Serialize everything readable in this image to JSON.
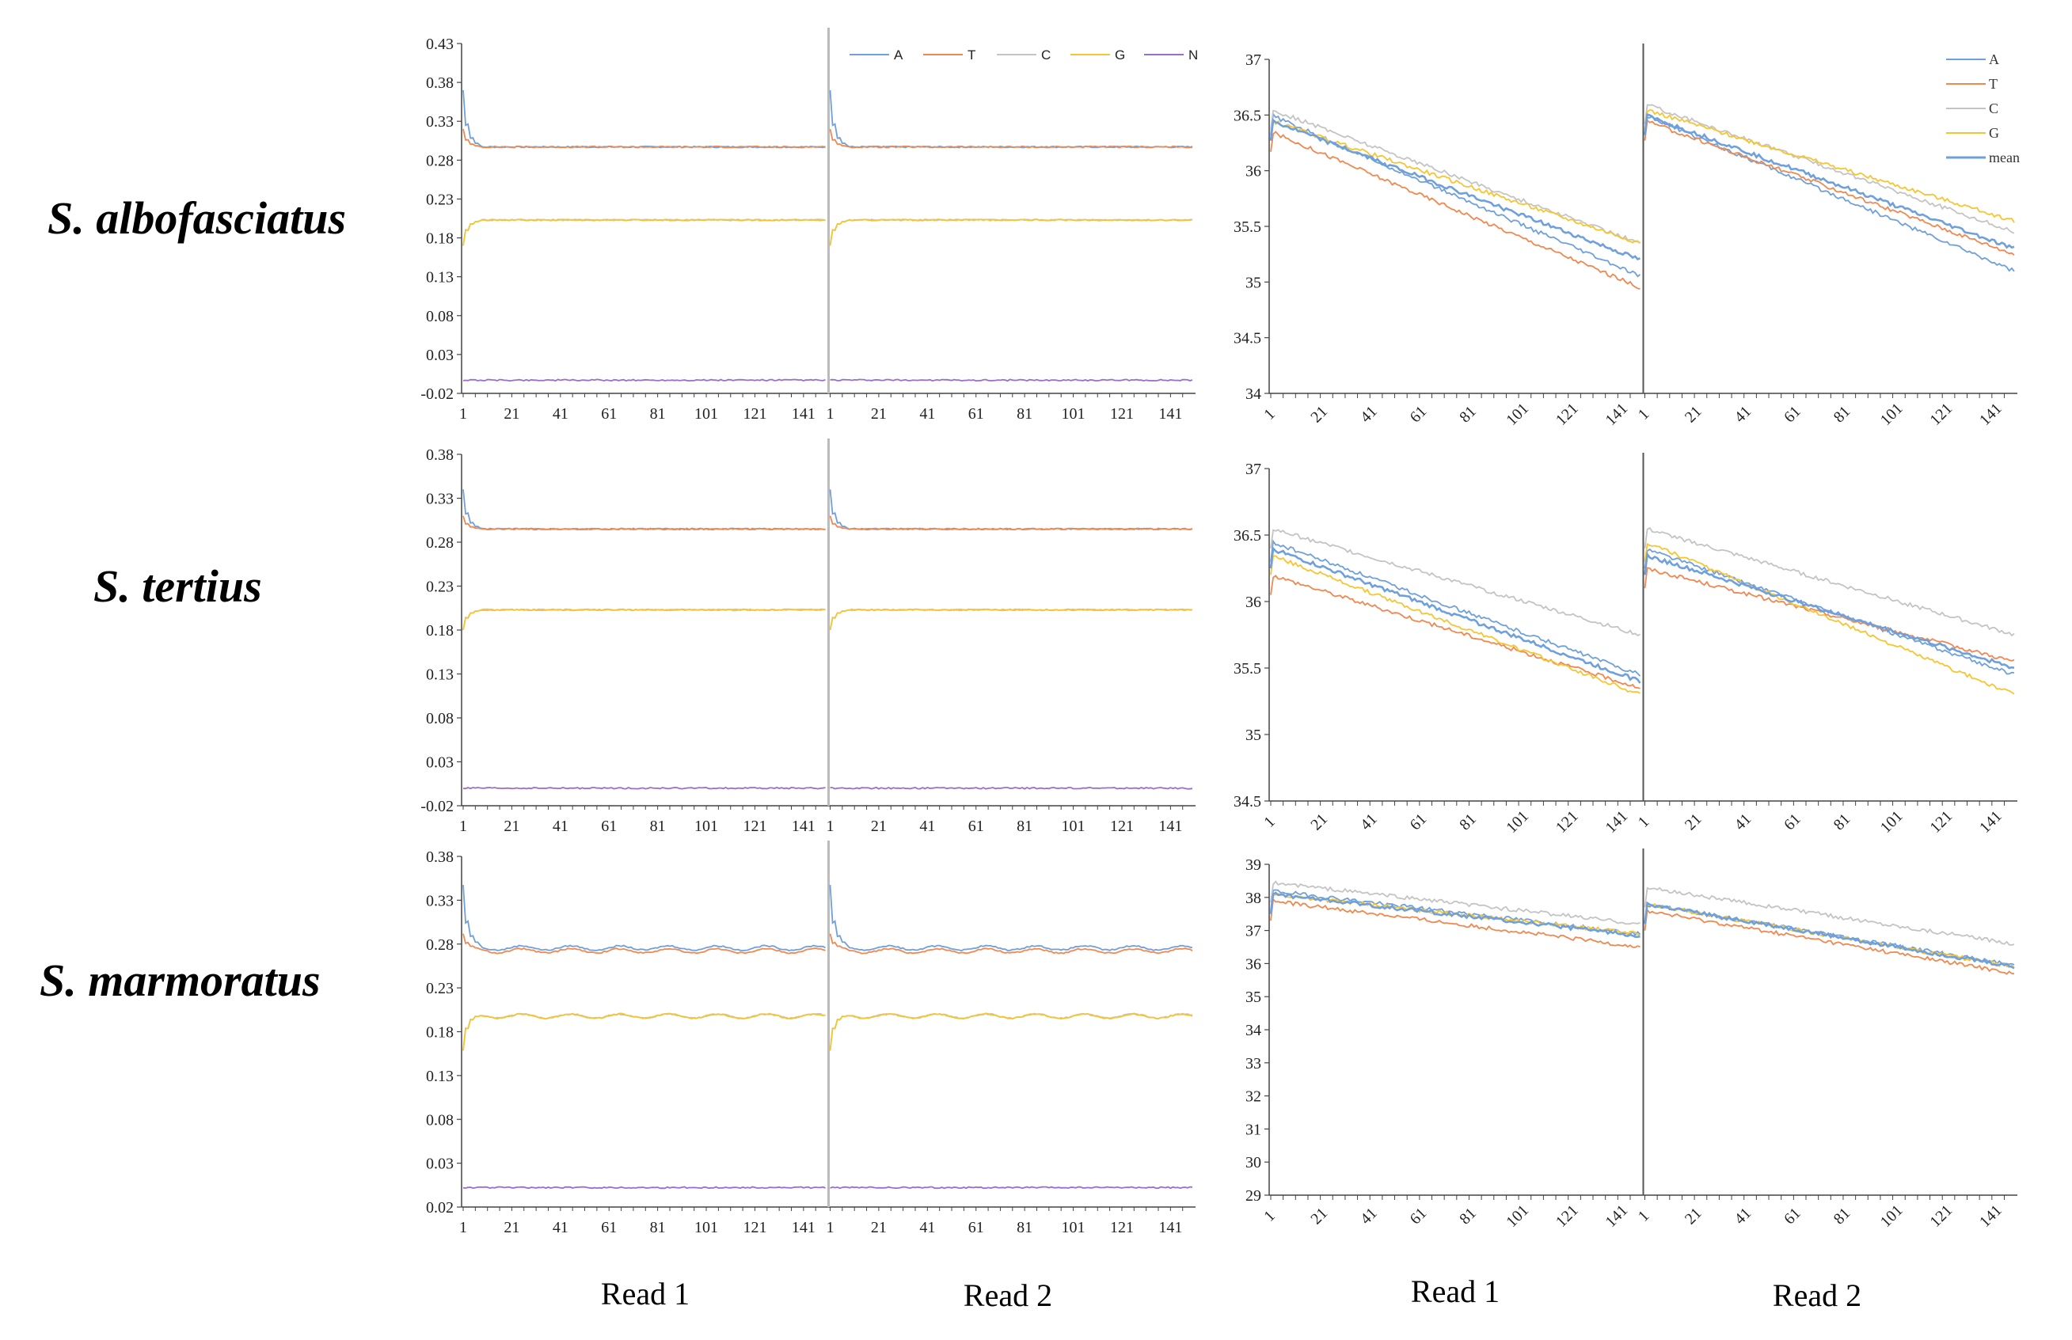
{
  "figure": {
    "species_labels": [
      "S. albofasciatus",
      "S. tertius",
      "S. marmoratus"
    ],
    "read_labels": [
      "Read 1",
      "Read 2",
      "Read 1",
      "Read 2"
    ]
  },
  "colors": {
    "A": "#6fa0dc",
    "T": "#f08850",
    "C": "#c4c4c4",
    "G": "#f7c530",
    "N": "#9a6fcb",
    "mean": "#6fa0dc",
    "divider": "#999999"
  },
  "chart_data": [
    {
      "type": "line",
      "row": 0,
      "panel": "base-composition",
      "title": "",
      "xlabel": "",
      "ylabel": "",
      "ylim": [
        -0.02,
        0.43
      ],
      "yticks": [
        "0.43",
        "0.38",
        "0.33",
        "0.28",
        "0.23",
        "0.18",
        "0.13",
        "0.08",
        "0.03",
        "-0.02"
      ],
      "xticks": [
        "1",
        "21",
        "41",
        "61",
        "81",
        "101",
        "121",
        "141"
      ],
      "reads": 2,
      "read_length": 150,
      "legend": {
        "entries": [
          "A",
          "T",
          "C",
          "G",
          "N"
        ],
        "placement": "top-right"
      },
      "series": [
        {
          "name": "A",
          "level": 0.297,
          "spike": 0.37
        },
        {
          "name": "T",
          "level": 0.297,
          "spike": 0.32
        },
        {
          "name": "C",
          "level": 0.203,
          "spike": 0.17
        },
        {
          "name": "G",
          "level": 0.203,
          "spike": 0.17
        },
        {
          "name": "N",
          "level": -0.003,
          "spike": -0.003
        }
      ]
    },
    {
      "type": "line",
      "row": 0,
      "panel": "quality",
      "title": "",
      "xlabel": "",
      "ylabel": "",
      "ylim": [
        34,
        37
      ],
      "yticks": [
        "37",
        "36.5",
        "36",
        "35.5",
        "35",
        "34.5",
        "34"
      ],
      "xticks": [
        "1",
        "21",
        "41",
        "61",
        "81",
        "101",
        "121",
        "141"
      ],
      "reads": 2,
      "read_length": 150,
      "legend": {
        "entries": [
          "A",
          "T",
          "C",
          "G",
          "mean"
        ],
        "placement": "top-right"
      },
      "series": [
        {
          "name": "A",
          "read1": [
            36.5,
            35.05
          ],
          "read2": [
            36.5,
            35.1
          ]
        },
        {
          "name": "T",
          "read1": [
            36.35,
            34.95
          ],
          "read2": [
            36.45,
            35.25
          ]
        },
        {
          "name": "C",
          "read1": [
            36.55,
            35.35
          ],
          "read2": [
            36.6,
            35.45
          ]
        },
        {
          "name": "G",
          "read1": [
            36.45,
            35.35
          ],
          "read2": [
            36.55,
            35.55
          ]
        },
        {
          "name": "mean",
          "read1": [
            36.45,
            35.2
          ],
          "read2": [
            36.5,
            35.3
          ]
        }
      ]
    },
    {
      "type": "line",
      "row": 1,
      "panel": "base-composition",
      "title": "",
      "xlabel": "",
      "ylabel": "",
      "ylim": [
        -0.02,
        0.38
      ],
      "yticks": [
        "0.38",
        "0.33",
        "0.28",
        "0.23",
        "0.18",
        "0.13",
        "0.08",
        "0.03",
        "-0.02"
      ],
      "xticks": [
        "1",
        "21",
        "41",
        "61",
        "81",
        "101",
        "121",
        "141"
      ],
      "reads": 2,
      "read_length": 150,
      "legend": {
        "entries": [],
        "placement": "none"
      },
      "series": [
        {
          "name": "A",
          "level": 0.295,
          "spike": 0.34
        },
        {
          "name": "T",
          "level": 0.295,
          "spike": 0.31
        },
        {
          "name": "C",
          "level": 0.203,
          "spike": 0.18
        },
        {
          "name": "G",
          "level": 0.203,
          "spike": 0.18
        },
        {
          "name": "N",
          "level": 0.0,
          "spike": 0.0
        }
      ]
    },
    {
      "type": "line",
      "row": 1,
      "panel": "quality",
      "title": "",
      "xlabel": "",
      "ylabel": "",
      "ylim": [
        34.5,
        37
      ],
      "yticks": [
        "37",
        "36.5",
        "36",
        "35.5",
        "35",
        "34.5"
      ],
      "xticks": [
        "1",
        "21",
        "41",
        "61",
        "81",
        "101",
        "121",
        "141"
      ],
      "reads": 2,
      "read_length": 150,
      "legend": {
        "entries": [],
        "placement": "none"
      },
      "series": [
        {
          "name": "A",
          "read1": [
            36.45,
            35.45
          ],
          "read2": [
            36.4,
            35.45
          ]
        },
        {
          "name": "T",
          "read1": [
            36.2,
            35.35
          ],
          "read2": [
            36.25,
            35.55
          ]
        },
        {
          "name": "C",
          "read1": [
            36.55,
            35.75
          ],
          "read2": [
            36.55,
            35.75
          ]
        },
        {
          "name": "G",
          "read1": [
            36.35,
            35.3
          ],
          "read2": [
            36.45,
            35.3
          ]
        },
        {
          "name": "mean",
          "read1": [
            36.4,
            35.4
          ],
          "read2": [
            36.35,
            35.5
          ]
        }
      ]
    },
    {
      "type": "line",
      "row": 2,
      "panel": "base-composition",
      "title": "",
      "xlabel": "",
      "ylabel": "",
      "ylim": [
        0.02,
        0.38
      ],
      "yticks": [
        "0.38",
        "0.33",
        "0.28",
        "0.23",
        "0.18",
        "0.13",
        "0.08",
        "0.03",
        "0.02"
      ],
      "xticks": [
        "1",
        "21",
        "41",
        "61",
        "81",
        "101",
        "121",
        "141"
      ],
      "reads": 2,
      "read_length": 150,
      "legend": {
        "entries": [],
        "placement": "none"
      },
      "series": [
        {
          "name": "A",
          "level": 0.286,
          "spike": 0.35
        },
        {
          "name": "T",
          "level": 0.283,
          "spike": 0.3
        },
        {
          "name": "C",
          "level": 0.216,
          "spike": 0.18
        },
        {
          "name": "G",
          "level": 0.216,
          "spike": 0.18
        },
        {
          "name": "N",
          "level": 0.04,
          "spike": 0.04
        }
      ]
    },
    {
      "type": "line",
      "row": 2,
      "panel": "quality",
      "title": "",
      "xlabel": "",
      "ylabel": "",
      "ylim": [
        29,
        39
      ],
      "yticks": [
        "39",
        "38",
        "37",
        "36",
        "35",
        "34",
        "33",
        "32",
        "31",
        "30",
        "29"
      ],
      "xticks": [
        "1",
        "21",
        "41",
        "61",
        "81",
        "101",
        "121",
        "141"
      ],
      "reads": 2,
      "read_length": 150,
      "legend": {
        "entries": [],
        "placement": "none"
      },
      "series": [
        {
          "name": "A",
          "read1": [
            38.2,
            36.9
          ],
          "read2": [
            37.8,
            35.95
          ]
        },
        {
          "name": "T",
          "read1": [
            37.9,
            36.5
          ],
          "read2": [
            37.6,
            35.7
          ]
        },
        {
          "name": "C",
          "read1": [
            38.45,
            37.2
          ],
          "read2": [
            38.3,
            36.6
          ]
        },
        {
          "name": "G",
          "read1": [
            38.1,
            36.9
          ],
          "read2": [
            37.8,
            35.9
          ]
        },
        {
          "name": "mean",
          "read1": [
            38.1,
            36.85
          ],
          "read2": [
            37.8,
            35.9
          ]
        }
      ]
    }
  ]
}
